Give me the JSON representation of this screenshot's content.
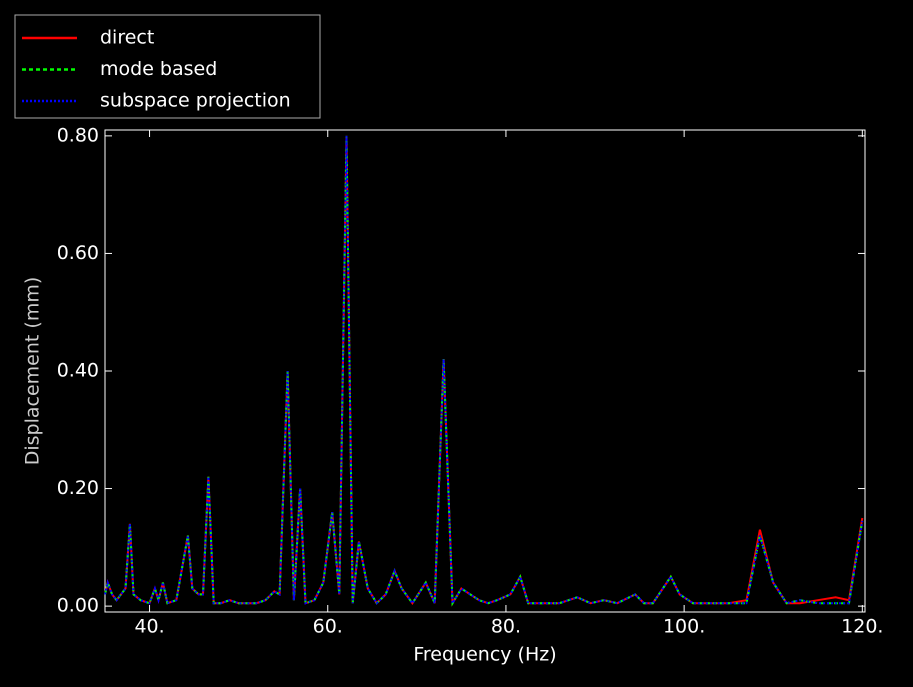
{
  "chart_data": {
    "type": "line",
    "xlabel": "Frequency (Hz)",
    "ylabel": "Displacement (mm)",
    "xlim": [
      35,
      120.3
    ],
    "ylim": [
      -0.01,
      0.81
    ],
    "xticks": [
      {
        "value": 40,
        "label": "40."
      },
      {
        "value": 60,
        "label": "60."
      },
      {
        "value": 80,
        "label": "80."
      },
      {
        "value": 100,
        "label": "100."
      },
      {
        "value": 120,
        "label": "120."
      }
    ],
    "yticks": [
      {
        "value": 0,
        "label": "0.00"
      },
      {
        "value": 0.2,
        "label": "0.20"
      },
      {
        "value": 0.4,
        "label": "0.40"
      },
      {
        "value": 0.6,
        "label": "0.60"
      },
      {
        "value": 0.8,
        "label": "0.80"
      }
    ],
    "legend": "upper left",
    "x": [
      35.0,
      35.3,
      35.8,
      36.3,
      36.8,
      37.3,
      37.8,
      38.2,
      39.0,
      40.0,
      40.6,
      41.0,
      41.5,
      42.0,
      43.0,
      44.3,
      44.8,
      45.5,
      46.0,
      46.6,
      47.2,
      48.0,
      49.0,
      50.0,
      51.0,
      52.0,
      53.0,
      54.0,
      54.6,
      55.5,
      56.2,
      56.9,
      57.5,
      58.5,
      59.5,
      60.5,
      61.3,
      62.1,
      62.8,
      63.5,
      64.5,
      65.5,
      66.5,
      67.5,
      68.3,
      69.5,
      71.0,
      72.0,
      73.0,
      74.0,
      75.0,
      76.0,
      77.0,
      78.0,
      79.0,
      80.5,
      81.6,
      82.5,
      84.0,
      86.0,
      88.0,
      89.5,
      91.0,
      92.5,
      94.5,
      95.5,
      96.5,
      98.5,
      99.5,
      101.0,
      103.0,
      105.0,
      107.0,
      108.5,
      110.0,
      111.5,
      113.0,
      115.0,
      117.0,
      118.5,
      120.0
    ],
    "series": [
      {
        "name": "direct",
        "color": "#ff0000",
        "linestyle": "solid",
        "values": [
          0.02,
          0.04,
          0.02,
          0.01,
          0.02,
          0.03,
          0.14,
          0.02,
          0.01,
          0.005,
          0.03,
          0.01,
          0.04,
          0.005,
          0.01,
          0.12,
          0.03,
          0.02,
          0.02,
          0.22,
          0.005,
          0.005,
          0.01,
          0.005,
          0.005,
          0.005,
          0.01,
          0.025,
          0.02,
          0.4,
          0.01,
          0.2,
          0.005,
          0.01,
          0.04,
          0.16,
          0.02,
          0.8,
          0.005,
          0.11,
          0.03,
          0.005,
          0.02,
          0.06,
          0.03,
          0.005,
          0.04,
          0.005,
          0.42,
          0.005,
          0.03,
          0.02,
          0.01,
          0.005,
          0.01,
          0.02,
          0.05,
          0.005,
          0.005,
          0.005,
          0.015,
          0.005,
          0.01,
          0.005,
          0.02,
          0.005,
          0.005,
          0.05,
          0.02,
          0.005,
          0.005,
          0.005,
          0.01,
          0.13,
          0.04,
          0.005,
          0.005,
          0.01,
          0.015,
          0.01,
          0.15
        ]
      },
      {
        "name": "mode based",
        "color": "#00ff00",
        "linestyle": "dashed",
        "values": [
          0.02,
          0.04,
          0.02,
          0.01,
          0.02,
          0.03,
          0.14,
          0.02,
          0.01,
          0.005,
          0.03,
          0.01,
          0.04,
          0.005,
          0.01,
          0.12,
          0.03,
          0.02,
          0.02,
          0.22,
          0.005,
          0.005,
          0.01,
          0.005,
          0.005,
          0.005,
          0.01,
          0.025,
          0.02,
          0.4,
          0.01,
          0.2,
          0.005,
          0.01,
          0.04,
          0.16,
          0.02,
          0.8,
          0.005,
          0.11,
          0.03,
          0.005,
          0.02,
          0.06,
          0.03,
          0.005,
          0.04,
          0.005,
          0.42,
          0.005,
          0.03,
          0.02,
          0.01,
          0.005,
          0.01,
          0.02,
          0.05,
          0.005,
          0.005,
          0.005,
          0.015,
          0.005,
          0.01,
          0.005,
          0.02,
          0.005,
          0.005,
          0.05,
          0.02,
          0.005,
          0.005,
          0.005,
          0.005,
          0.12,
          0.04,
          0.005,
          0.01,
          0.005,
          0.005,
          0.005,
          0.145
        ]
      },
      {
        "name": "subspace projection",
        "color": "#0000ff",
        "linestyle": "dotted",
        "values": [
          0.02,
          0.04,
          0.02,
          0.01,
          0.02,
          0.03,
          0.14,
          0.02,
          0.01,
          0.005,
          0.03,
          0.01,
          0.04,
          0.005,
          0.01,
          0.12,
          0.03,
          0.02,
          0.02,
          0.22,
          0.005,
          0.005,
          0.01,
          0.005,
          0.005,
          0.005,
          0.01,
          0.025,
          0.02,
          0.4,
          0.01,
          0.2,
          0.005,
          0.01,
          0.04,
          0.16,
          0.02,
          0.8,
          0.005,
          0.11,
          0.03,
          0.005,
          0.02,
          0.06,
          0.03,
          0.005,
          0.04,
          0.005,
          0.42,
          0.005,
          0.03,
          0.02,
          0.01,
          0.005,
          0.01,
          0.02,
          0.05,
          0.005,
          0.005,
          0.005,
          0.015,
          0.005,
          0.01,
          0.005,
          0.02,
          0.005,
          0.005,
          0.05,
          0.02,
          0.005,
          0.005,
          0.005,
          0.005,
          0.12,
          0.04,
          0.005,
          0.01,
          0.005,
          0.005,
          0.005,
          0.145
        ]
      }
    ]
  }
}
